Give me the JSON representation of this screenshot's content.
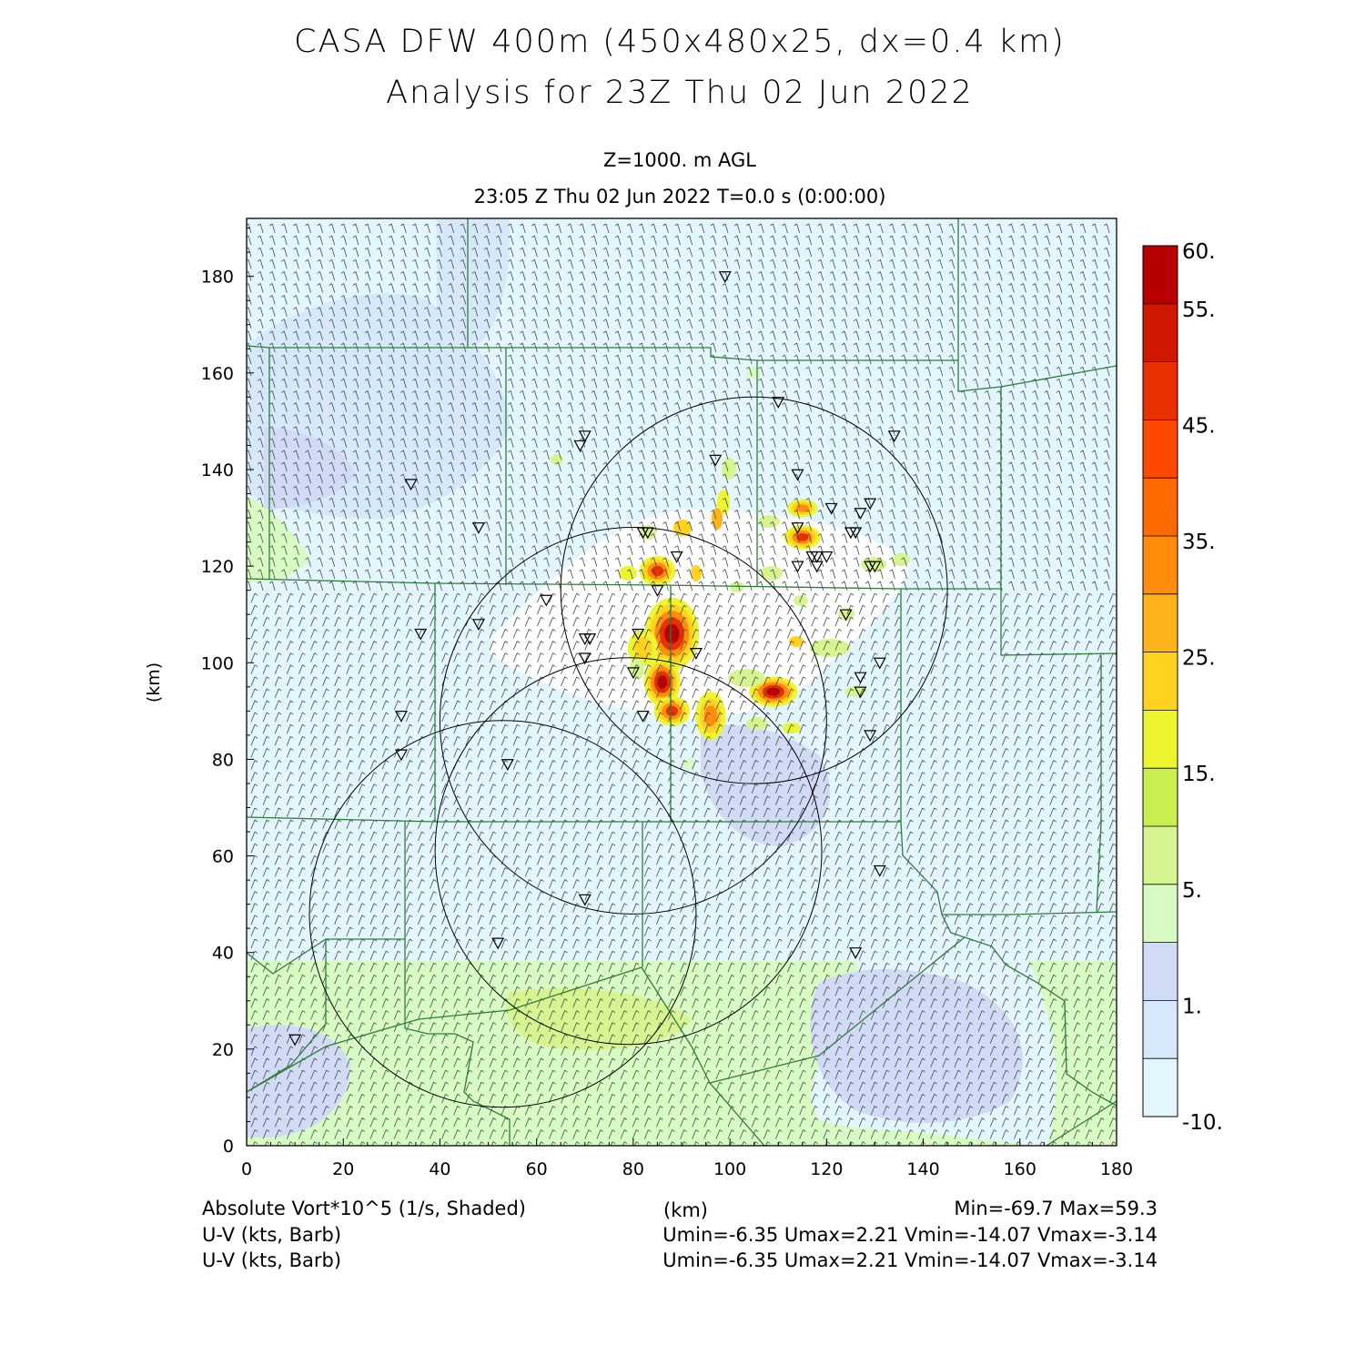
{
  "title": {
    "line1": "CASA DFW 400m (450x480x25, dx=0.4 km)",
    "line2": "Analysis for 23Z Thu 02 Jun 2022"
  },
  "subtitle": {
    "level": "Z=1000. m AGL",
    "time": "23:05 Z Thu 02 Jun 2022   T=0.0 s (0:00:00)"
  },
  "axes": {
    "xlabel": "(km)",
    "ylabel": "(km)",
    "x_ticks": [
      "0",
      "20",
      "40",
      "60",
      "80",
      "100",
      "120",
      "140",
      "160",
      "180"
    ],
    "y_ticks": [
      "0",
      "20",
      "40",
      "60",
      "80",
      "100",
      "120",
      "140",
      "160",
      "180"
    ],
    "x_range": [
      0,
      180
    ],
    "y_range": [
      0,
      192
    ]
  },
  "colorbar": {
    "labels": [
      "60.",
      "55.",
      "45.",
      "35.",
      "25.",
      "15.",
      "5.",
      "1.",
      "-10."
    ],
    "colors": [
      "#b80000",
      "#d01800",
      "#e83000",
      "#ff4800",
      "#ff6a00",
      "#ff8c0a",
      "#ffb31a",
      "#ffd21f",
      "#ecf530",
      "#c8ee50",
      "#d6f590",
      "#d8fbc4",
      "#d2dbf6",
      "#d6e9fb",
      "#e4f6fd"
    ]
  },
  "footer": {
    "field": "Absolute Vort*10^5 (1/s, Shaded)",
    "units": "(km)",
    "minmax": "Min=-69.7 Max=59.3",
    "barb1_label": "U-V (kts, Barb)",
    "barb1_stats": "Umin=-6.35 Umax=2.21 Vmin=-14.07 Vmax=-3.14",
    "barb2_label": "U-V (kts, Barb)",
    "barb2_stats": "Umin=-6.35 Umax=2.21 Vmin=-14.07 Vmax=-3.14"
  },
  "colors": {
    "background_field": "#e4f6fd",
    "county_lines": "#2e7d3a",
    "barbs": "#333333",
    "range_rings": "#000000"
  },
  "map_data": {
    "radar_rings_km": [
      {
        "x": 105,
        "y": 115,
        "r": 40
      },
      {
        "x": 80,
        "y": 88,
        "r": 40
      },
      {
        "x": 79,
        "y": 61,
        "r": 40
      },
      {
        "x": 53,
        "y": 48,
        "r": 40
      }
    ],
    "stations_km": [
      [
        99,
        180
      ],
      [
        110,
        154
      ],
      [
        134,
        147
      ],
      [
        70,
        147
      ],
      [
        69,
        145
      ],
      [
        97,
        142
      ],
      [
        114,
        139
      ],
      [
        34,
        137
      ],
      [
        121,
        132
      ],
      [
        127,
        131
      ],
      [
        129,
        133
      ],
      [
        114,
        128
      ],
      [
        48,
        128
      ],
      [
        82,
        127
      ],
      [
        83,
        127
      ],
      [
        125,
        127
      ],
      [
        126,
        127
      ],
      [
        89,
        122
      ],
      [
        117,
        122
      ],
      [
        118,
        122
      ],
      [
        120,
        122
      ],
      [
        114,
        120
      ],
      [
        118,
        120
      ],
      [
        130,
        120
      ],
      [
        129,
        120
      ],
      [
        85,
        115
      ],
      [
        62,
        113
      ],
      [
        124,
        110
      ],
      [
        36,
        106
      ],
      [
        48,
        108
      ],
      [
        70,
        105
      ],
      [
        71,
        105
      ],
      [
        81,
        106
      ],
      [
        70,
        101
      ],
      [
        93,
        102
      ],
      [
        131,
        100
      ],
      [
        80,
        98
      ],
      [
        127,
        97
      ],
      [
        127,
        94
      ],
      [
        32,
        89
      ],
      [
        82,
        89
      ],
      [
        129,
        85
      ],
      [
        32,
        81
      ],
      [
        54,
        79
      ],
      [
        131,
        57
      ],
      [
        70,
        51
      ],
      [
        52,
        42
      ],
      [
        126,
        40
      ],
      [
        10,
        22
      ]
    ],
    "vorticity_blobs_km": [
      {
        "x": 88,
        "y": 106,
        "rx": 4.5,
        "ry": 6,
        "value": 59.3
      },
      {
        "x": 86,
        "y": 96,
        "rx": 3,
        "ry": 4,
        "value": 50
      },
      {
        "x": 88,
        "y": 90,
        "rx": 3,
        "ry": 2.5,
        "value": 45
      },
      {
        "x": 109,
        "y": 94,
        "rx": 4,
        "ry": 2.5,
        "value": 50
      },
      {
        "x": 85,
        "y": 119,
        "rx": 3,
        "ry": 2.5,
        "value": 45
      },
      {
        "x": 115,
        "y": 126,
        "rx": 3,
        "ry": 2,
        "value": 45
      },
      {
        "x": 96,
        "y": 89,
        "rx": 2.5,
        "ry": 4,
        "value": 35
      },
      {
        "x": 115,
        "y": 132,
        "rx": 2.5,
        "ry": 1.5,
        "value": 30
      },
      {
        "x": 82,
        "y": 103,
        "rx": 2.5,
        "ry": 3,
        "value": 25
      }
    ]
  }
}
